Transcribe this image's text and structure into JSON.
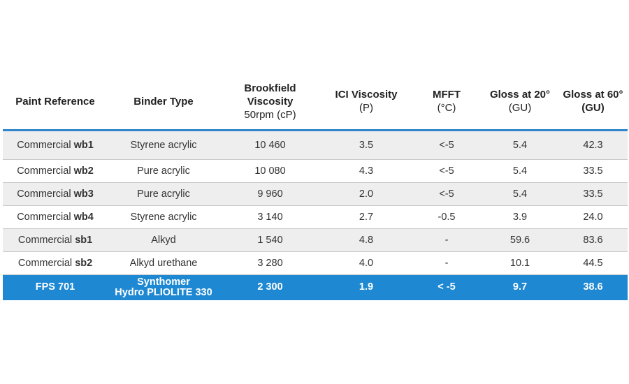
{
  "table": {
    "headers": [
      {
        "line1": "Paint Reference",
        "line2": "",
        "line2_bold": false
      },
      {
        "line1": "Binder Type",
        "line2": "",
        "line2_bold": false
      },
      {
        "line1": "Brookfield Viscosity",
        "line2": "50rpm (cP)",
        "line2_bold": false
      },
      {
        "line1": "ICI Viscosity",
        "line2": "(P)",
        "line2_bold": false
      },
      {
        "line1": "MFFT",
        "line2": "(°C)",
        "line2_bold": false
      },
      {
        "line1": "Gloss at 20°",
        "line2": "(GU)",
        "line2_bold": false
      },
      {
        "line1": "Gloss at 60°",
        "line2": "(GU)",
        "line2_bold": true
      }
    ],
    "rows": [
      {
        "ref_prefix": "Commercial",
        "ref_code": "wb1",
        "binder": "Styrene acrylic",
        "brookfield": "10 460",
        "ici": "3.5",
        "mfft": "<-5",
        "gloss20": "5.4",
        "gloss60": "42.3"
      },
      {
        "ref_prefix": "Commercial",
        "ref_code": "wb2",
        "binder": "Pure acrylic",
        "brookfield": "10 080",
        "ici": "4.3",
        "mfft": "<-5",
        "gloss20": "5.4",
        "gloss60": "33.5"
      },
      {
        "ref_prefix": "Commercial",
        "ref_code": "wb3",
        "binder": "Pure acrylic",
        "brookfield": "9 960",
        "ici": "2.0",
        "mfft": "<-5",
        "gloss20": "5.4",
        "gloss60": "33.5"
      },
      {
        "ref_prefix": "Commercial",
        "ref_code": "wb4",
        "binder": "Styrene acrylic",
        "brookfield": "3 140",
        "ici": "2.7",
        "mfft": "-0.5",
        "gloss20": "3.9",
        "gloss60": "24.0"
      },
      {
        "ref_prefix": "Commercial",
        "ref_code": "sb1",
        "binder": "Alkyd",
        "brookfield": "1 540",
        "ici": "4.8",
        "mfft": "-",
        "gloss20": "59.6",
        "gloss60": "83.6"
      },
      {
        "ref_prefix": "Commercial",
        "ref_code": "sb2",
        "binder": "Alkyd urethane",
        "brookfield": "3 280",
        "ici": "4.0",
        "mfft": "-",
        "gloss20": "10.1",
        "gloss60": "44.5"
      }
    ],
    "highlight": {
      "ref": "FPS 701",
      "binder_line1": "Synthomer",
      "binder_line2": "Hydro PLIOLITE 330",
      "brookfield": "2 300",
      "ici": "1.9",
      "mfft": "< -5",
      "gloss20": "9.7",
      "gloss60": "38.6",
      "color": "#1e88d2"
    },
    "accent_color": "#2f86cc"
  }
}
